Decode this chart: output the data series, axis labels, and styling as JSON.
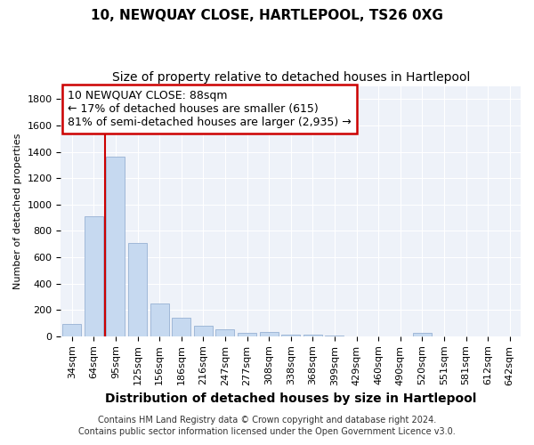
{
  "title": "10, NEWQUAY CLOSE, HARTLEPOOL, TS26 0XG",
  "subtitle": "Size of property relative to detached houses in Hartlepool",
  "xlabel": "Distribution of detached houses by size in Hartlepool",
  "ylabel": "Number of detached properties",
  "categories": [
    "34sqm",
    "64sqm",
    "95sqm",
    "125sqm",
    "156sqm",
    "186sqm",
    "216sqm",
    "247sqm",
    "277sqm",
    "308sqm",
    "338sqm",
    "368sqm",
    "399sqm",
    "429sqm",
    "460sqm",
    "490sqm",
    "520sqm",
    "551sqm",
    "581sqm",
    "612sqm",
    "642sqm"
  ],
  "values": [
    90,
    910,
    1360,
    705,
    250,
    140,
    80,
    50,
    25,
    30,
    15,
    10,
    5,
    0,
    0,
    0,
    25,
    0,
    0,
    0,
    0
  ],
  "bar_color": "#c6d9f0",
  "bar_edgecolor": "#a0b8d8",
  "ylim": [
    0,
    1900
  ],
  "yticks": [
    0,
    200,
    400,
    600,
    800,
    1000,
    1200,
    1400,
    1600,
    1800
  ],
  "annotation_title": "10 NEWQUAY CLOSE: 88sqm",
  "annotation_line1": "← 17% of detached houses are smaller (615)",
  "annotation_line2": "81% of semi-detached houses are larger (2,935) →",
  "annotation_box_color": "#ffffff",
  "annotation_box_edgecolor": "#cc0000",
  "line_color": "#cc0000",
  "line_x_index": 2.0,
  "footer_line1": "Contains HM Land Registry data © Crown copyright and database right 2024.",
  "footer_line2": "Contains public sector information licensed under the Open Government Licence v3.0.",
  "background_color": "#eef2f9",
  "title_fontsize": 11,
  "subtitle_fontsize": 10,
  "xlabel_fontsize": 10,
  "ylabel_fontsize": 8,
  "tick_fontsize": 8,
  "annotation_fontsize": 9,
  "footer_fontsize": 7
}
